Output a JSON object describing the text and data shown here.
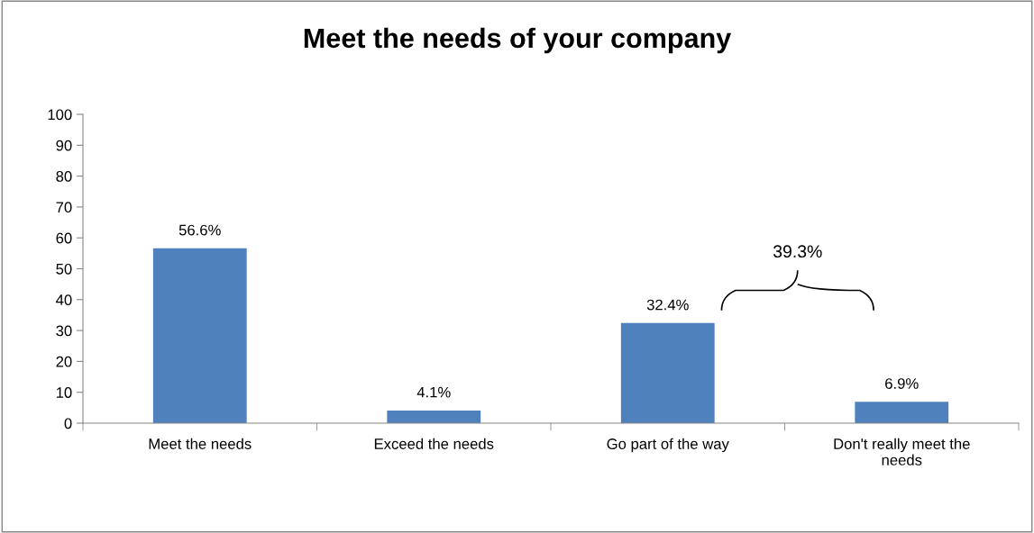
{
  "chart_data": {
    "type": "bar",
    "title": "Meet the needs of your company",
    "categories": [
      "Meet the needs",
      "Exceed the needs",
      "Go part of the way",
      "Don't really meet the\nneeds"
    ],
    "values": [
      56.6,
      4.1,
      32.4,
      6.9
    ],
    "color": "#4f81bd",
    "value_labels": [
      "56.6%",
      "4.1%",
      "32.4%",
      "6.9%"
    ],
    "annotations": [
      "39.3%"
    ],
    "ylim": [
      0,
      100
    ],
    "yticks": [
      0,
      10,
      20,
      30,
      40,
      50,
      60,
      70,
      80,
      90,
      100
    ],
    "grid": false,
    "legend": false
  }
}
